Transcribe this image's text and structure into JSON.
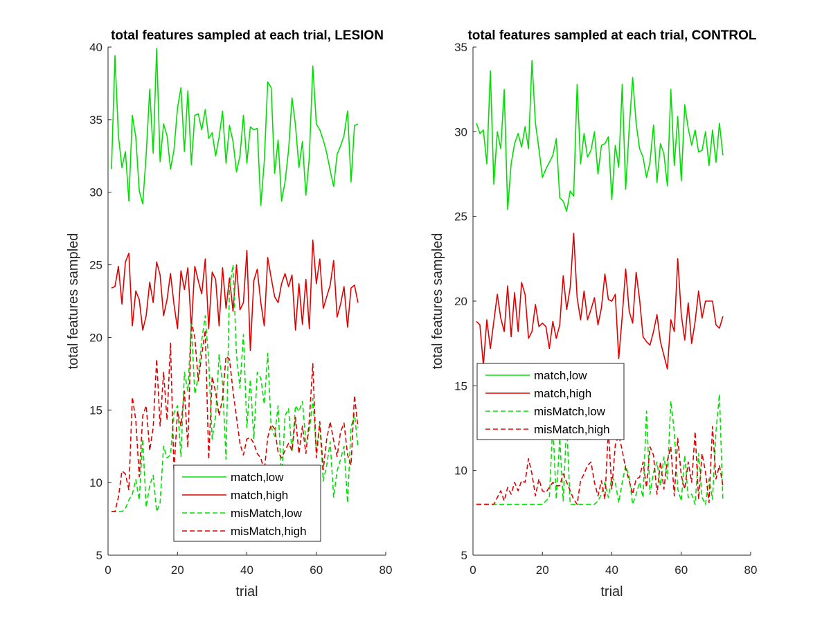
{
  "chart_data": [
    {
      "type": "line",
      "title": "total features sampled at each trial, LESION",
      "xlabel": "trial",
      "ylabel": "total features sampled",
      "xlim": [
        0,
        80
      ],
      "ylim": [
        5,
        40
      ],
      "xticks": [
        0,
        20,
        40,
        60,
        80
      ],
      "yticks": [
        5,
        10,
        15,
        20,
        25,
        30,
        35,
        40
      ],
      "xtick_labels": [
        "0",
        "20",
        "40",
        "60",
        "80"
      ],
      "ytick_labels": [
        "5",
        "10",
        "15",
        "20",
        "25",
        "30",
        "35",
        "40"
      ],
      "grid": false,
      "legend_position": "bottom-center",
      "x": [
        1,
        2,
        3,
        4,
        5,
        6,
        7,
        8,
        9,
        10,
        11,
        12,
        13,
        14,
        15,
        16,
        17,
        18,
        19,
        20,
        21,
        22,
        23,
        24,
        25,
        26,
        27,
        28,
        29,
        30,
        31,
        32,
        33,
        34,
        35,
        36,
        37,
        38,
        39,
        40,
        41,
        42,
        43,
        44,
        45,
        46,
        47,
        48,
        49,
        50,
        51,
        52,
        53,
        54,
        55,
        56,
        57,
        58,
        59,
        60,
        61,
        62,
        63,
        64,
        65,
        66,
        67,
        68,
        69,
        70,
        71,
        72
      ],
      "series": [
        {
          "name": "match,low",
          "color": "#00e000",
          "dash": "solid",
          "values": [
            31.6,
            39.4,
            33.9,
            31.7,
            32.8,
            29.4,
            35.3,
            33.8,
            30.1,
            29.2,
            32.6,
            37.1,
            32.7,
            39.9,
            32.1,
            34.7,
            33.9,
            31.6,
            32.9,
            35.8,
            37.2,
            32.8,
            37.0,
            31.9,
            35.3,
            35.4,
            34.3,
            35.7,
            33.7,
            34.1,
            32.5,
            33.8,
            35.6,
            32.0,
            34.6,
            33.5,
            31.4,
            32.5,
            35.3,
            32.0,
            34.5,
            34.3,
            34.4,
            29.1,
            32.1,
            37.6,
            37.2,
            31.3,
            33.6,
            29.4,
            30.7,
            32.9,
            36.5,
            34.6,
            31.7,
            33.5,
            29.8,
            32.4,
            38.7,
            34.7,
            34.3,
            33.6,
            32.7,
            31.5,
            30.4,
            32.6,
            33.2,
            33.9,
            35.6,
            30.7,
            34.6,
            34.7
          ]
        },
        {
          "name": "match,high",
          "color": "#e00000",
          "dash": "solid",
          "values": [
            23.4,
            23.5,
            24.9,
            22.3,
            25.2,
            25.8,
            20.8,
            23.2,
            22.6,
            20.5,
            21.5,
            23.8,
            22.4,
            25.2,
            24.3,
            21.5,
            22.6,
            24.4,
            22.3,
            20.6,
            24.6,
            23.3,
            24.8,
            20.6,
            24.9,
            23.9,
            23.0,
            25.4,
            20.6,
            24.5,
            24.0,
            20.8,
            24.8,
            22.0,
            24.1,
            21.8,
            25.0,
            21.9,
            22.4,
            26.0,
            19.1,
            23.9,
            24.7,
            22.4,
            20.8,
            25.5,
            24.1,
            22.8,
            22.4,
            23.7,
            24.4,
            23.5,
            24.3,
            20.5,
            23.7,
            20.9,
            24.0,
            20.6,
            26.7,
            23.7,
            25.4,
            22.0,
            22.8,
            23.6,
            25.3,
            21.4,
            22.3,
            23.5,
            20.7,
            23.4,
            23.6,
            22.4
          ]
        },
        {
          "name": "misMatch,low",
          "color": "#00e000",
          "dash": "dashed",
          "values": [
            8.0,
            8.0,
            8.0,
            8.0,
            8.2,
            8.8,
            9.2,
            10.2,
            8.8,
            13.0,
            8.3,
            9.8,
            10.5,
            8.0,
            8.6,
            12.5,
            11.7,
            11.9,
            14.8,
            15.3,
            11.8,
            17.6,
            16.3,
            21.0,
            16.1,
            17.3,
            19.8,
            21.5,
            18.4,
            13.0,
            14.6,
            18.8,
            16.8,
            11.6,
            23.4,
            25.0,
            18.8,
            16.5,
            20.2,
            13.8,
            17.1,
            13.0,
            17.6,
            17.2,
            15.4,
            18.9,
            13.8,
            13.2,
            15.3,
            10.1,
            14.6,
            15.1,
            12.1,
            15.3,
            14.9,
            15.6,
            12.8,
            13.5,
            15.8,
            12.2,
            14.0,
            10.1,
            11.2,
            12.8,
            9.0,
            10.8,
            11.6,
            12.5,
            8.6,
            13.8,
            14.7,
            12.5
          ]
        },
        {
          "name": "misMatch,high",
          "color": "#e00000",
          "dash": "dashed",
          "values": [
            8.0,
            8.0,
            9.0,
            10.8,
            10.6,
            9.5,
            15.9,
            14.3,
            10.4,
            14.6,
            15.3,
            12.2,
            13.8,
            18.5,
            13.9,
            17.6,
            14.3,
            19.6,
            10.8,
            14.9,
            13.9,
            16.3,
            12.4,
            21.1,
            20.0,
            17.0,
            18.8,
            20.5,
            11.6,
            17.3,
            16.2,
            14.6,
            15.8,
            18.7,
            18.5,
            16.3,
            14.5,
            12.7,
            11.9,
            13.0,
            13.1,
            12.7,
            12.0,
            11.7,
            10.8,
            13.1,
            14.0,
            13.7,
            12.1,
            11.7,
            12.2,
            12.7,
            12.2,
            14.5,
            12.0,
            13.9,
            12.0,
            14.3,
            18.2,
            11.7,
            14.2,
            10.9,
            13.0,
            14.2,
            12.9,
            11.8,
            13.5,
            14.1,
            11.9,
            11.2,
            16.0,
            13.8
          ]
        }
      ]
    },
    {
      "type": "line",
      "title": "total features sampled at each trial, CONTROL",
      "xlabel": "trial",
      "ylabel": "total features sampled",
      "xlim": [
        0,
        80
      ],
      "ylim": [
        5,
        35
      ],
      "xticks": [
        0,
        20,
        40,
        60,
        80
      ],
      "yticks": [
        5,
        10,
        15,
        20,
        25,
        30,
        35
      ],
      "xtick_labels": [
        "0",
        "20",
        "40",
        "60",
        "80"
      ],
      "ytick_labels": [
        "5",
        "10",
        "15",
        "20",
        "25",
        "30",
        "35"
      ],
      "grid": false,
      "legend_position": "middle-left",
      "x": [
        1,
        2,
        3,
        4,
        5,
        6,
        7,
        8,
        9,
        10,
        11,
        12,
        13,
        14,
        15,
        16,
        17,
        18,
        19,
        20,
        21,
        22,
        23,
        24,
        25,
        26,
        27,
        28,
        29,
        30,
        31,
        32,
        33,
        34,
        35,
        36,
        37,
        38,
        39,
        40,
        41,
        42,
        43,
        44,
        45,
        46,
        47,
        48,
        49,
        50,
        51,
        52,
        53,
        54,
        55,
        56,
        57,
        58,
        59,
        60,
        61,
        62,
        63,
        64,
        65,
        66,
        67,
        68,
        69,
        70,
        71,
        72
      ],
      "series": [
        {
          "name": "match,low",
          "color": "#00e000",
          "dash": "solid",
          "values": [
            30.5,
            29.9,
            30.1,
            28.1,
            33.6,
            26.9,
            30.0,
            29.0,
            32.5,
            25.4,
            28.1,
            29.3,
            29.9,
            29.1,
            30.3,
            29.0,
            34.2,
            30.5,
            29.0,
            27.3,
            27.8,
            28.2,
            28.6,
            29.6,
            26.1,
            25.9,
            25.3,
            26.5,
            26.2,
            32.8,
            28.1,
            29.9,
            28.5,
            28.9,
            30.0,
            27.5,
            29.2,
            29.3,
            29.7,
            26.0,
            29.2,
            27.9,
            32.8,
            26.6,
            30.2,
            33.2,
            30.5,
            29.0,
            28.5,
            27.3,
            28.2,
            30.4,
            27.0,
            29.3,
            28.7,
            26.8,
            32.5,
            28.0,
            30.9,
            27.1,
            31.6,
            30.2,
            29.2,
            30.1,
            28.8,
            28.9,
            30.0,
            28.0,
            30.1,
            28.2,
            30.5,
            28.6
          ]
        },
        {
          "name": "match,high",
          "color": "#e00000",
          "dash": "solid",
          "values": [
            18.8,
            18.6,
            16.2,
            18.9,
            17.2,
            18.8,
            20.4,
            19.0,
            18.2,
            20.9,
            17.9,
            20.5,
            18.2,
            21.1,
            20.4,
            17.8,
            18.2,
            19.8,
            18.5,
            18.7,
            18.5,
            17.2,
            18.8,
            17.8,
            18.6,
            21.5,
            19.5,
            20.8,
            24.0,
            20.2,
            18.9,
            20.6,
            18.9,
            19.5,
            20.2,
            18.6,
            19.6,
            21.6,
            20.1,
            20.0,
            20.4,
            16.6,
            19.1,
            21.9,
            19.4,
            18.7,
            21.7,
            20.1,
            17.9,
            17.6,
            17.4,
            18.2,
            19.2,
            17.6,
            16.8,
            16.0,
            18.9,
            18.2,
            22.5,
            19.2,
            17.7,
            19.9,
            17.5,
            18.8,
            20.6,
            19.0,
            20.0,
            20.0,
            20.0,
            18.6,
            18.4,
            19.1
          ]
        },
        {
          "name": "misMatch,low",
          "color": "#00e000",
          "dash": "dashed",
          "values": [
            8.0,
            8.0,
            8.0,
            8.0,
            8.0,
            8.0,
            8.0,
            8.0,
            8.0,
            8.0,
            8.0,
            8.0,
            8.0,
            8.0,
            8.0,
            8.0,
            8.0,
            8.0,
            8.0,
            8.0,
            8.2,
            8.4,
            12.8,
            8.3,
            11.9,
            8.2,
            12.8,
            8.0,
            8.0,
            8.0,
            8.0,
            8.0,
            8.0,
            8.0,
            8.0,
            8.2,
            8.6,
            9.3,
            8.4,
            9.6,
            9.3,
            8.1,
            9.3,
            10.3,
            9.6,
            8.0,
            8.6,
            9.3,
            8.4,
            13.5,
            8.6,
            9.9,
            10.5,
            9.1,
            10.8,
            9.5,
            14.1,
            12.3,
            8.9,
            8.2,
            10.9,
            8.4,
            8.6,
            8.0,
            11.0,
            8.4,
            8.0,
            9.5,
            8.3,
            12.3,
            14.5,
            8.2
          ]
        },
        {
          "name": "misMatch,high",
          "color": "#e00000",
          "dash": "dashed",
          "values": [
            8.0,
            8.0,
            8.0,
            8.0,
            8.0,
            8.0,
            8.4,
            8.8,
            8.2,
            9.0,
            8.6,
            9.3,
            8.8,
            9.4,
            9.3,
            10.7,
            9.8,
            8.5,
            9.5,
            8.8,
            8.7,
            9.0,
            9.3,
            9.1,
            9.1,
            9.8,
            9.3,
            8.8,
            8.3,
            8.0,
            9.4,
            9.8,
            10.3,
            10.5,
            9.3,
            8.5,
            9.4,
            8.3,
            12.4,
            8.9,
            11.5,
            12.1,
            11.2,
            10.1,
            9.4,
            8.6,
            9.5,
            9.6,
            10.5,
            9.0,
            11.4,
            10.9,
            8.6,
            10.5,
            8.9,
            10.6,
            11.4,
            8.5,
            11.9,
            9.7,
            8.9,
            10.5,
            9.3,
            12.3,
            8.3,
            11.0,
            9.9,
            8.1,
            12.6,
            9.5,
            10.3,
            9.1
          ]
        }
      ]
    }
  ]
}
